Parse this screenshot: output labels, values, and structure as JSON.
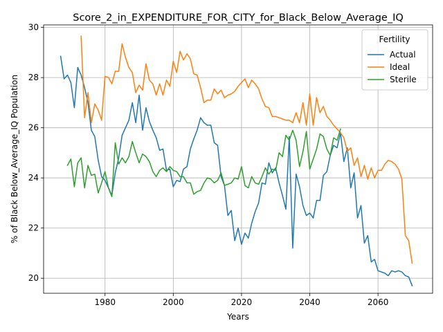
{
  "chart_data": {
    "type": "line",
    "title": "Score_2_in_EXPENDITURE_FOR_CITY_for_Black_Below_Average_IQ",
    "xlabel": "Years",
    "ylabel": "% of Black Below_Average_IQ Population",
    "xlim": [
      1962,
      2076
    ],
    "ylim": [
      19.4,
      30.1
    ],
    "xticks": [
      1980,
      2000,
      2020,
      2040,
      2060
    ],
    "yticks": [
      20,
      22,
      24,
      26,
      28,
      30
    ],
    "grid": true,
    "legend": {
      "title": "Fertility",
      "placement": "top-right"
    },
    "series": [
      {
        "name": "Actual",
        "color": "#1f77b4",
        "points": [
          [
            1967,
            28.85
          ],
          [
            1968,
            27.95
          ],
          [
            1969,
            28.1
          ],
          [
            1970,
            27.8
          ],
          [
            1971,
            26.8
          ],
          [
            1972,
            28.4
          ],
          [
            1973,
            28.1
          ],
          [
            1974,
            27.6
          ],
          [
            1975,
            27.0
          ],
          [
            1976,
            25.9
          ],
          [
            1977,
            25.65
          ],
          [
            1978,
            24.7
          ],
          [
            1979,
            24.05
          ],
          [
            1980,
            23.9
          ],
          [
            1981,
            23.6
          ],
          [
            1982,
            23.3
          ],
          [
            1983,
            24.2
          ],
          [
            1984,
            24.8
          ],
          [
            1985,
            25.7
          ],
          [
            1986,
            26.0
          ],
          [
            1987,
            26.3
          ],
          [
            1988,
            27.0
          ],
          [
            1989,
            26.2
          ],
          [
            1990,
            27.3
          ],
          [
            1991,
            25.9
          ],
          [
            1992,
            26.8
          ],
          [
            1993,
            26.25
          ],
          [
            1994,
            25.9
          ],
          [
            1995,
            25.6
          ],
          [
            1996,
            25.1
          ],
          [
            1997,
            25.15
          ],
          [
            1998,
            24.3
          ],
          [
            1999,
            24.35
          ],
          [
            2000,
            23.65
          ],
          [
            2001,
            23.9
          ],
          [
            2002,
            23.85
          ],
          [
            2003,
            24.35
          ],
          [
            2004,
            24.45
          ],
          [
            2005,
            25.15
          ],
          [
            2006,
            25.55
          ],
          [
            2007,
            25.9
          ],
          [
            2008,
            26.4
          ],
          [
            2009,
            26.2
          ],
          [
            2010,
            26.1
          ],
          [
            2011,
            26.1
          ],
          [
            2012,
            25.4
          ],
          [
            2013,
            25.3
          ],
          [
            2014,
            24.05
          ],
          [
            2015,
            23.7
          ],
          [
            2016,
            22.5
          ],
          [
            2017,
            22.7
          ],
          [
            2018,
            21.5
          ],
          [
            2019,
            22.0
          ],
          [
            2020,
            21.35
          ],
          [
            2021,
            21.8
          ],
          [
            2022,
            21.6
          ],
          [
            2023,
            22.2
          ],
          [
            2024,
            22.65
          ],
          [
            2025,
            23.0
          ],
          [
            2026,
            23.8
          ],
          [
            2027,
            23.75
          ],
          [
            2028,
            24.6
          ],
          [
            2029,
            24.2
          ],
          [
            2030,
            24.4
          ],
          [
            2031,
            23.8
          ],
          [
            2032,
            23.3
          ],
          [
            2033,
            22.75
          ],
          [
            2034,
            25.65
          ],
          [
            2035,
            21.2
          ],
          [
            2036,
            24.15
          ],
          [
            2037,
            23.65
          ],
          [
            2038,
            22.9
          ],
          [
            2039,
            22.5
          ],
          [
            2040,
            22.6
          ],
          [
            2041,
            22.4
          ],
          [
            2042,
            23.1
          ],
          [
            2043,
            23.1
          ],
          [
            2044,
            24.1
          ],
          [
            2045,
            24.25
          ],
          [
            2046,
            24.9
          ],
          [
            2047,
            25.3
          ],
          [
            2048,
            25.2
          ],
          [
            2049,
            25.8
          ],
          [
            2050,
            24.65
          ],
          [
            2051,
            25.2
          ],
          [
            2052,
            23.6
          ],
          [
            2053,
            24.2
          ],
          [
            2054,
            22.4
          ],
          [
            2055,
            22.9
          ],
          [
            2056,
            21.4
          ],
          [
            2057,
            21.7
          ],
          [
            2058,
            20.65
          ],
          [
            2059,
            20.75
          ],
          [
            2060,
            20.3
          ],
          [
            2061,
            20.25
          ],
          [
            2062,
            20.2
          ],
          [
            2063,
            20.1
          ],
          [
            2064,
            20.3
          ],
          [
            2065,
            20.25
          ],
          [
            2066,
            20.3
          ],
          [
            2067,
            20.25
          ],
          [
            2068,
            20.1
          ],
          [
            2069,
            20.05
          ],
          [
            2070,
            19.7
          ]
        ]
      },
      {
        "name": "Ideal",
        "color": "#ff7f0e",
        "points": [
          [
            1973,
            29.65
          ],
          [
            1974,
            26.4
          ],
          [
            1975,
            27.4
          ],
          [
            1976,
            26.2
          ],
          [
            1977,
            26.95
          ],
          [
            1978,
            26.7
          ],
          [
            1979,
            26.3
          ],
          [
            1980,
            28.05
          ],
          [
            1981,
            28.0
          ],
          [
            1982,
            27.75
          ],
          [
            1983,
            28.25
          ],
          [
            1984,
            28.25
          ],
          [
            1985,
            29.35
          ],
          [
            1986,
            28.8
          ],
          [
            1987,
            28.4
          ],
          [
            1988,
            28.2
          ],
          [
            1989,
            27.4
          ],
          [
            1990,
            27.7
          ],
          [
            1991,
            27.5
          ],
          [
            1992,
            28.55
          ],
          [
            1993,
            27.9
          ],
          [
            1994,
            27.75
          ],
          [
            1995,
            27.3
          ],
          [
            1996,
            27.75
          ],
          [
            1997,
            27.3
          ],
          [
            1998,
            27.9
          ],
          [
            1999,
            27.65
          ],
          [
            2000,
            28.65
          ],
          [
            2001,
            28.2
          ],
          [
            2002,
            29.05
          ],
          [
            2003,
            28.7
          ],
          [
            2004,
            28.95
          ],
          [
            2005,
            28.75
          ],
          [
            2006,
            28.15
          ],
          [
            2007,
            28.1
          ],
          [
            2008,
            27.6
          ],
          [
            2009,
            27.0
          ],
          [
            2010,
            27.1
          ],
          [
            2011,
            27.1
          ],
          [
            2012,
            27.55
          ],
          [
            2013,
            27.35
          ],
          [
            2014,
            27.5
          ],
          [
            2015,
            27.2
          ],
          [
            2016,
            27.3
          ],
          [
            2017,
            27.35
          ],
          [
            2018,
            27.45
          ],
          [
            2019,
            27.65
          ],
          [
            2020,
            27.8
          ],
          [
            2021,
            27.95
          ],
          [
            2022,
            27.6
          ],
          [
            2023,
            27.9
          ],
          [
            2024,
            27.75
          ],
          [
            2025,
            27.55
          ],
          [
            2026,
            27.15
          ],
          [
            2027,
            26.85
          ],
          [
            2028,
            26.8
          ],
          [
            2029,
            26.45
          ],
          [
            2030,
            26.45
          ],
          [
            2031,
            26.4
          ],
          [
            2032,
            26.35
          ],
          [
            2033,
            26.3
          ],
          [
            2034,
            26.3
          ],
          [
            2035,
            26.2
          ],
          [
            2036,
            26.6
          ],
          [
            2037,
            26.2
          ],
          [
            2038,
            27.0
          ],
          [
            2039,
            26.1
          ],
          [
            2040,
            27.35
          ],
          [
            2041,
            26.1
          ],
          [
            2042,
            27.2
          ],
          [
            2043,
            26.6
          ],
          [
            2044,
            26.85
          ],
          [
            2045,
            26.45
          ],
          [
            2046,
            26.3
          ],
          [
            2047,
            26.1
          ],
          [
            2048,
            25.95
          ],
          [
            2049,
            25.8
          ],
          [
            2050,
            25.6
          ],
          [
            2051,
            25.05
          ],
          [
            2052,
            25.2
          ],
          [
            2053,
            24.5
          ],
          [
            2054,
            24.8
          ],
          [
            2055,
            24.05
          ],
          [
            2056,
            24.5
          ],
          [
            2057,
            23.95
          ],
          [
            2058,
            24.4
          ],
          [
            2059,
            24.0
          ],
          [
            2060,
            24.3
          ],
          [
            2061,
            24.3
          ],
          [
            2062,
            24.55
          ],
          [
            2063,
            24.7
          ],
          [
            2064,
            24.65
          ],
          [
            2065,
            24.55
          ],
          [
            2066,
            24.35
          ],
          [
            2067,
            23.95
          ],
          [
            2068,
            21.7
          ],
          [
            2069,
            21.5
          ],
          [
            2070,
            20.6
          ]
        ]
      },
      {
        "name": "Sterile",
        "color": "#2ca02c",
        "points": [
          [
            1969,
            24.5
          ],
          [
            1970,
            24.75
          ],
          [
            1971,
            23.65
          ],
          [
            1972,
            24.6
          ],
          [
            1973,
            24.8
          ],
          [
            1974,
            23.6
          ],
          [
            1975,
            24.5
          ],
          [
            1976,
            24.1
          ],
          [
            1977,
            24.15
          ],
          [
            1978,
            23.4
          ],
          [
            1979,
            23.8
          ],
          [
            1980,
            24.25
          ],
          [
            1981,
            23.6
          ],
          [
            1982,
            23.25
          ],
          [
            1983,
            25.4
          ],
          [
            1984,
            24.55
          ],
          [
            1985,
            24.8
          ],
          [
            1986,
            24.6
          ],
          [
            1987,
            24.85
          ],
          [
            1988,
            25.45
          ],
          [
            1989,
            25.0
          ],
          [
            1990,
            24.6
          ],
          [
            1991,
            24.95
          ],
          [
            1992,
            24.85
          ],
          [
            1993,
            24.65
          ],
          [
            1994,
            24.25
          ],
          [
            1995,
            24.05
          ],
          [
            1996,
            24.3
          ],
          [
            1997,
            24.4
          ],
          [
            1998,
            24.25
          ],
          [
            1999,
            24.45
          ],
          [
            2000,
            24.3
          ],
          [
            2001,
            24.25
          ],
          [
            2002,
            24.05
          ],
          [
            2003,
            24.05
          ],
          [
            2004,
            23.8
          ],
          [
            2005,
            23.8
          ],
          [
            2006,
            23.35
          ],
          [
            2007,
            23.45
          ],
          [
            2008,
            23.5
          ],
          [
            2009,
            23.8
          ],
          [
            2010,
            24.0
          ],
          [
            2011,
            23.95
          ],
          [
            2012,
            23.8
          ],
          [
            2013,
            23.9
          ],
          [
            2014,
            24.2
          ],
          [
            2015,
            23.7
          ],
          [
            2016,
            23.75
          ],
          [
            2017,
            23.8
          ],
          [
            2018,
            24.0
          ],
          [
            2019,
            23.95
          ],
          [
            2020,
            24.45
          ],
          [
            2021,
            23.7
          ],
          [
            2022,
            23.6
          ],
          [
            2023,
            24.05
          ],
          [
            2024,
            23.8
          ],
          [
            2025,
            23.75
          ],
          [
            2026,
            24.05
          ],
          [
            2027,
            24.4
          ],
          [
            2028,
            24.15
          ],
          [
            2029,
            24.35
          ],
          [
            2030,
            24.3
          ],
          [
            2031,
            25.0
          ],
          [
            2032,
            24.85
          ],
          [
            2033,
            25.7
          ],
          [
            2034,
            25.5
          ],
          [
            2035,
            25.9
          ],
          [
            2036,
            25.5
          ],
          [
            2037,
            24.45
          ],
          [
            2038,
            25.05
          ],
          [
            2039,
            25.85
          ],
          [
            2040,
            24.35
          ],
          [
            2041,
            24.75
          ],
          [
            2042,
            25.15
          ],
          [
            2043,
            25.75
          ],
          [
            2044,
            25.65
          ],
          [
            2045,
            25.15
          ],
          [
            2046,
            24.9
          ],
          [
            2047,
            25.6
          ],
          [
            2048,
            25.5
          ],
          [
            2049,
            25.95
          ]
        ]
      }
    ]
  }
}
